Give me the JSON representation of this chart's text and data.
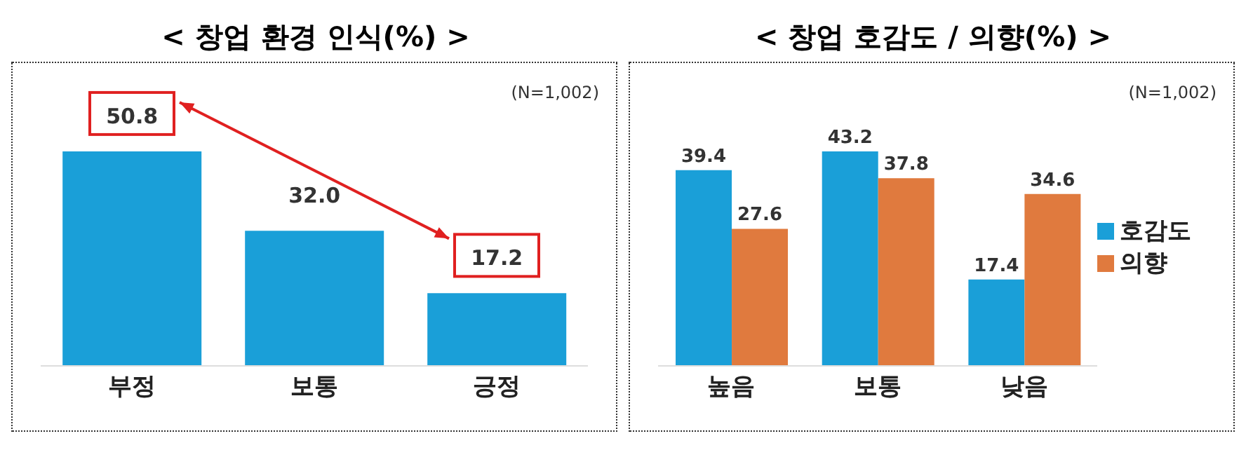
{
  "chart_data": [
    {
      "type": "bar",
      "title": "< 창업 환경 인식(%) >",
      "categories": [
        "부정",
        "보통",
        "긍정"
      ],
      "values": [
        50.8,
        32.0,
        17.2
      ],
      "value_labels": [
        "50.8",
        "32.0",
        "17.2"
      ],
      "color": "#1a9fd8",
      "annotations": [
        "(N=1,002)"
      ],
      "legend": false
    },
    {
      "type": "bar",
      "title": "< 창업 호감도 / 의향(%) >",
      "categories": [
        "높음",
        "보통",
        "낮음"
      ],
      "series": [
        {
          "name": "호감도",
          "color": "#1a9fd8",
          "values": [
            39.4,
            43.2,
            17.4
          ],
          "value_labels": [
            "39.4",
            "43.2",
            "17.4"
          ]
        },
        {
          "name": "의향",
          "color": "#e07a3e",
          "values": [
            27.6,
            37.8,
            34.6
          ],
          "value_labels": [
            "27.6",
            "37.8",
            "34.6"
          ]
        }
      ],
      "annotations": [
        "(N=1,002)"
      ],
      "legend": "right"
    }
  ]
}
